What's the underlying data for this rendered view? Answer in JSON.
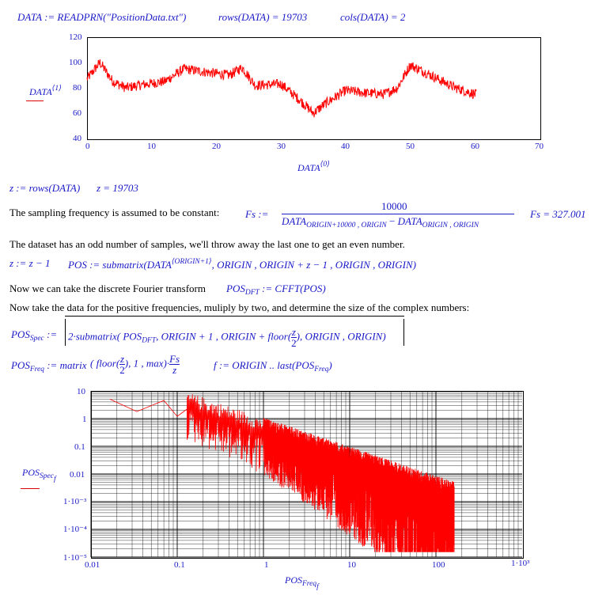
{
  "line1": {
    "data_assign": "DATA := READPRN(\"PositionData.txt\")",
    "rows_eval": "rows(DATA) = 19703",
    "cols_eval": "cols(DATA) = 2"
  },
  "plot1": {
    "ylabel": "DATA",
    "ylabel_sup": "⟨1⟩",
    "xlabel": "DATA",
    "xlabel_sup": "⟨0⟩",
    "yticks": [
      "120",
      "100",
      "80",
      "60",
      "40"
    ],
    "xticks": [
      "0",
      "10",
      "20",
      "30",
      "40",
      "50",
      "60",
      "70"
    ]
  },
  "line_z": {
    "z_assign": "z := rows(DATA)",
    "z_eval": "z = 19703"
  },
  "line_fs": {
    "text": "The sampling frequency is assumed to be constant:",
    "lhs": "Fs :=",
    "numerator": "10000",
    "den_a": "DATA",
    "den_a_sub": "ORIGIN+10000 , ORIGIN",
    "den_minus": "−",
    "den_b": "DATA",
    "den_b_sub": "ORIGIN , ORIGIN",
    "fs_eval": "Fs = 327.001"
  },
  "line_odd": {
    "text": "The dataset has an odd number of samples, we'll throw away the last one to get an even number.",
    "z_dec": "z := z − 1",
    "pos_lhs": "POS := submatrix",
    "pos_data": "DATA",
    "pos_sup": "⟨ORIGIN+1⟩",
    "pos_args": ", ORIGIN , ORIGIN + z − 1 , ORIGIN , ORIGIN"
  },
  "line_fft": {
    "text": "Now we can take the discrete Fourier transform",
    "lhs": "POS",
    "lhs_sub": "DFT",
    "rhs": ":= CFFT(POS)"
  },
  "line_pos": {
    "text": "Now take the data for the positive frequencies, muliply by two, and determine the size of the complex numbers:"
  },
  "line_spec": {
    "lhs": "POS",
    "lhs_sub": "Spec",
    "assign": ":=",
    "expr_a": "2·submatrix",
    "expr_b": "POS",
    "expr_b_sub": "DFT",
    "expr_c": ", ORIGIN + 1 , ORIGIN + floor",
    "frac_num": "z",
    "frac_den": "2",
    "expr_d": ", ORIGIN , ORIGIN"
  },
  "line_freq": {
    "lhs": "POS",
    "lhs_sub": "Freq",
    "assign": ":= matrix",
    "floor": "floor",
    "frac_num": "z",
    "frac_den": "2",
    "args": ", 1 , max",
    "mult_num": "Fs",
    "mult_den": "z",
    "range": "f := ORIGIN .. last",
    "range_arg": "POS",
    "range_arg_sub": "Freq"
  },
  "plot2": {
    "ylabel": "POS",
    "ylabel_sub": "Spec",
    "ylabel_sub2": "f",
    "xlabel": "POS",
    "xlabel_sub": "Freq",
    "xlabel_sub2": "f",
    "yticks": [
      "10",
      "1",
      "0.1",
      "0.01",
      "1·10⁻³",
      "1·10⁻⁴",
      "1·10⁻⁵"
    ],
    "xticks": [
      "0.01",
      "0.1",
      "1",
      "10",
      "100",
      "1·10³"
    ]
  },
  "colors": {
    "trace": "#ff0000",
    "math": "#1a1ac8",
    "grid": "#000000"
  }
}
